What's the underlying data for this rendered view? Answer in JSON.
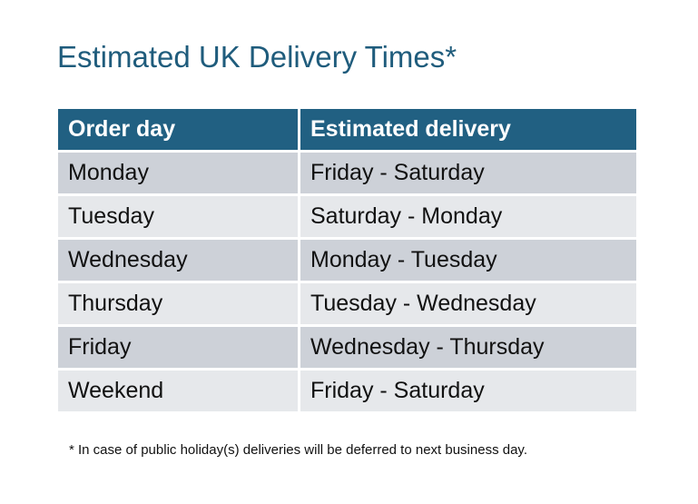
{
  "title": "Estimated UK Delivery Times*",
  "headers": [
    "Order day",
    "Estimated delivery"
  ],
  "rows": [
    [
      "Monday",
      "Friday - Saturday"
    ],
    [
      "Tuesday",
      "Saturday - Monday"
    ],
    [
      "Wednesday",
      "Monday - Tuesday"
    ],
    [
      "Thursday",
      "Tuesday - Wednesday"
    ],
    [
      "Friday",
      "Wednesday - Thursday"
    ],
    [
      "Weekend",
      "Friday - Saturday"
    ]
  ],
  "footnote": "* In case of public holiday(s) deliveries will be deferred to next business day.",
  "colors": {
    "header": "#216082",
    "row_odd": "#cdd1d8",
    "row_even": "#e6e8eb",
    "title": "#1f5c7c"
  }
}
